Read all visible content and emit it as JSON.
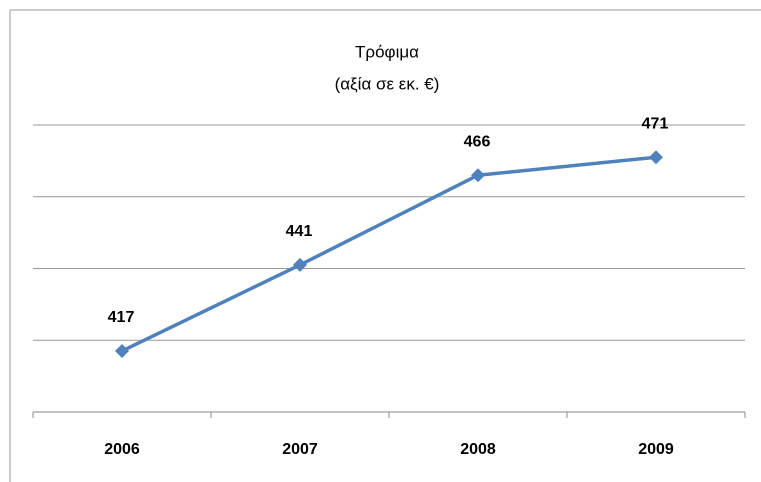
{
  "chart_data": {
    "type": "line",
    "title": "Τρόφιμα",
    "subtitle": "(αξία σε εκ. €)",
    "categories": [
      "2006",
      "2007",
      "2008",
      "2009"
    ],
    "values": [
      417,
      441,
      466,
      471
    ],
    "color": "#4f81bd",
    "ylim": [
      400,
      480
    ],
    "yticks": [
      400,
      420,
      440,
      460,
      480
    ],
    "grid": true
  }
}
